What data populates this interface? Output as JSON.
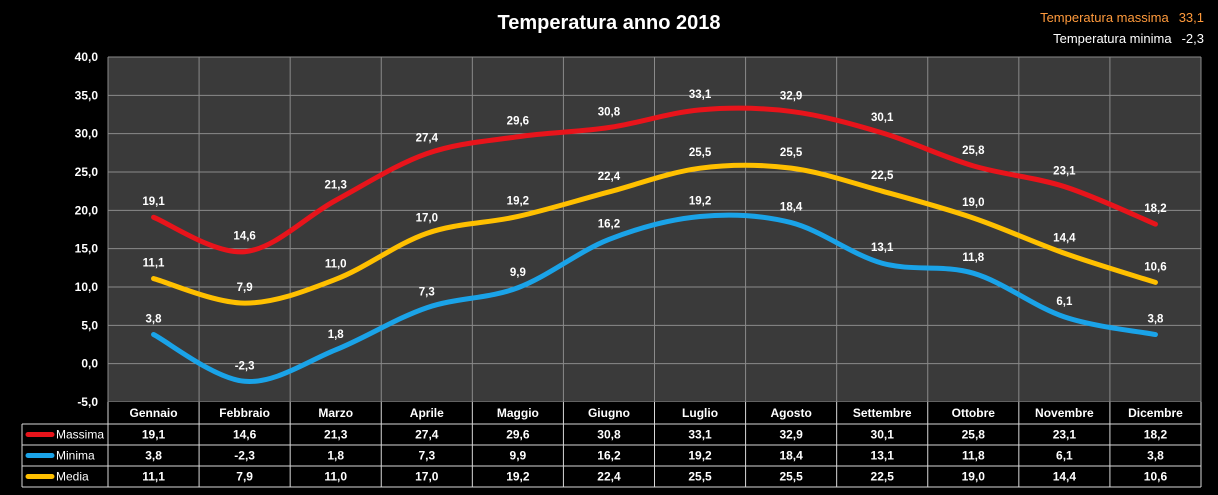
{
  "title": "Temperatura anno 2018",
  "stats": {
    "max_label": "Temperatura massima",
    "max_value": "33,1",
    "min_label": "Temperatura minima",
    "min_value": "-2,3"
  },
  "chart_data": {
    "type": "line",
    "title": "Temperatura anno 2018",
    "categories": [
      "Gennaio",
      "Febbraio",
      "Marzo",
      "Aprile",
      "Maggio",
      "Giugno",
      "Luglio",
      "Agosto",
      "Settembre",
      "Ottobre",
      "Novembre",
      "Dicembre"
    ],
    "series": [
      {
        "name": "Massima",
        "color": "#e8141b",
        "values": [
          19.1,
          14.6,
          21.3,
          27.4,
          29.6,
          30.8,
          33.1,
          32.9,
          30.1,
          25.8,
          23.1,
          18.2
        ]
      },
      {
        "name": "Minima",
        "color": "#1aa3e8",
        "values": [
          3.8,
          -2.3,
          1.8,
          7.3,
          9.9,
          16.2,
          19.2,
          18.4,
          13.1,
          11.8,
          6.1,
          3.8
        ]
      },
      {
        "name": "Media",
        "color": "#ffc000",
        "values": [
          11.1,
          7.9,
          11.0,
          17.0,
          19.2,
          22.4,
          25.5,
          25.5,
          22.5,
          19.0,
          14.4,
          10.6
        ]
      }
    ],
    "ylim": [
      -5,
      40
    ],
    "yticks": [
      -5,
      0,
      5,
      10,
      15,
      20,
      25,
      30,
      35,
      40
    ],
    "grid": true,
    "legend": "data table below chart",
    "plot_background": "#3a3a3a",
    "decimal_separator": ","
  }
}
